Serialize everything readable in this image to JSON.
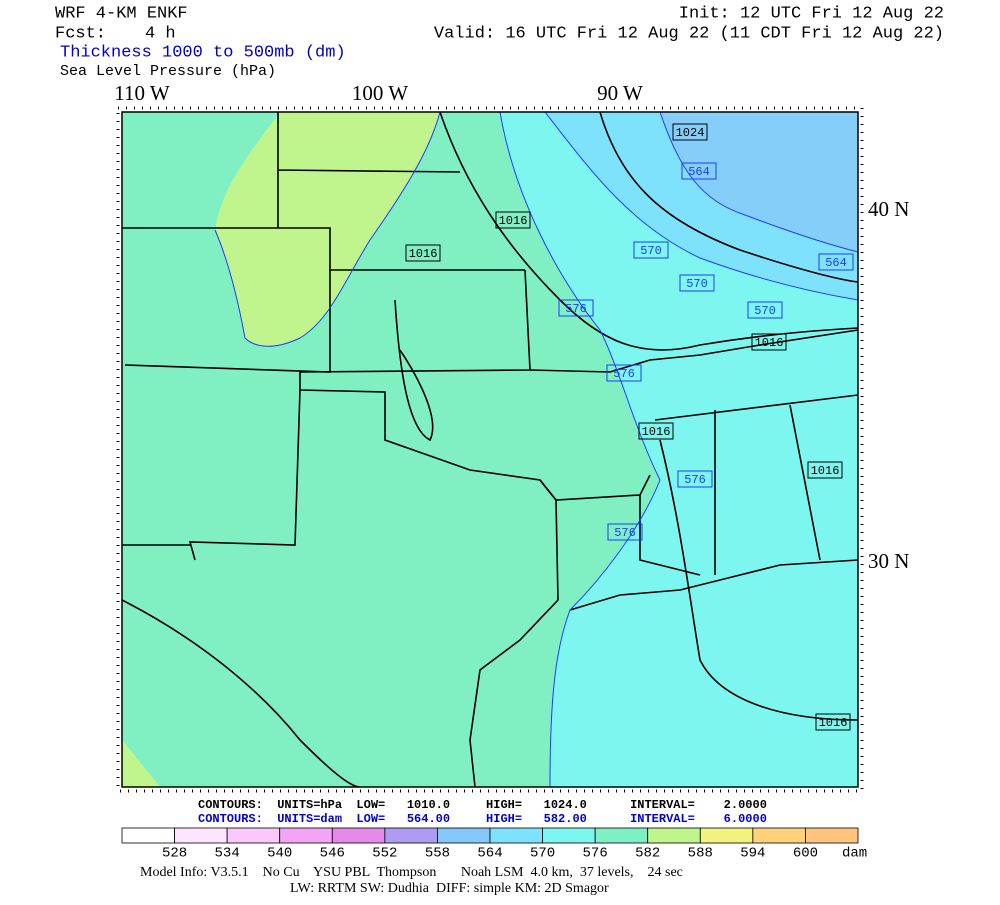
{
  "header": {
    "model": "WRF 4-KM ENKF",
    "fcst_label": "Fcst:",
    "fcst": "4 h",
    "init": "Init: 12 UTC Fri 12 Aug 22",
    "valid": "Valid: 16 UTC Fri 12 Aug 22 (11 CDT Fri 12 Aug 22)",
    "field1": "Thickness 1000 to 500mb (dm)",
    "field2": "Sea Level Pressure (hPa)"
  },
  "map": {
    "lon_labels": [
      "110 W",
      "100 W",
      "90 W"
    ],
    "lat_labels": [
      "40 N",
      "30 N"
    ],
    "pressure_labels": [
      1024,
      1016,
      1016,
      1016,
      1016,
      1016,
      1016
    ],
    "thickness_labels": [
      564,
      570,
      570,
      570,
      576,
      576,
      576,
      576,
      564
    ]
  },
  "contour_info": {
    "pressure": "CONTOURS:  UNITS=hPa  LOW=   1010.0     HIGH=   1024.0      INTERVAL=    2.0000",
    "thickness": "CONTOURS:  UNITS=dam  LOW=   564.00     HIGH=   582.00      INTERVAL=    6.0000"
  },
  "colorbar": {
    "levels": [
      528,
      534,
      540,
      546,
      552,
      558,
      564,
      570,
      576,
      582,
      588,
      594,
      600
    ],
    "unit": "dam",
    "colors": [
      "#ffffff",
      "#fde6fd",
      "#fbc8fb",
      "#f4a4f4",
      "#e58ae8",
      "#ae9cf2",
      "#84c8fa",
      "#7ee2fc",
      "#7cf6ee",
      "#7ef0c4",
      "#bff58c",
      "#f2f27e",
      "#ffd27a",
      "#ffc47e"
    ]
  },
  "footer": {
    "line1": "Model Info: V3.5.1    No Cu    YSU PBL  Thompson       Noah LSM  4.0 km,  37 levels,    24 sec",
    "line2": "LW: RRTM SW: Dudhia  DIFF: simple KM: 2D Smagor"
  }
}
